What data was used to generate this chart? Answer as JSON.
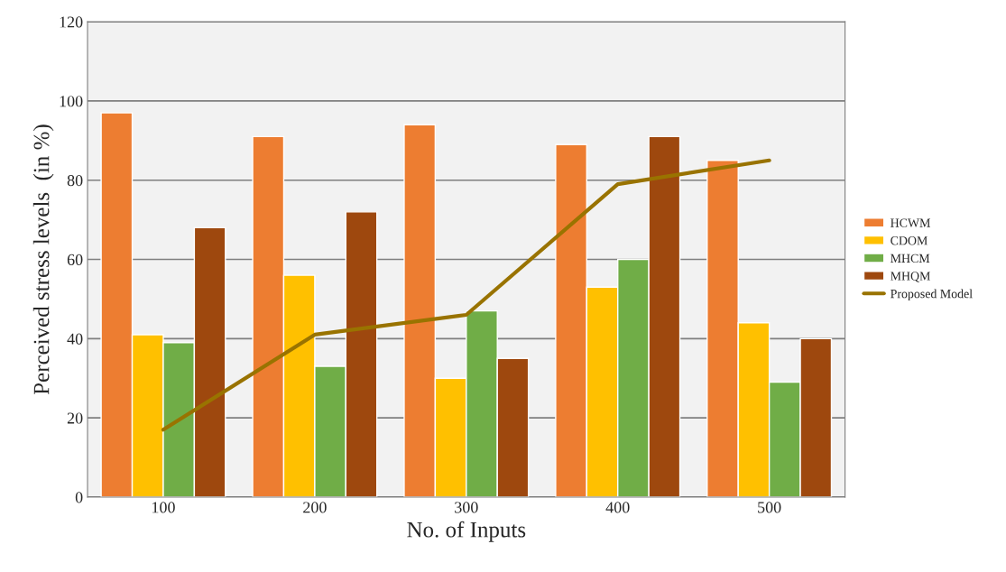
{
  "chart_data": {
    "type": "bar",
    "xlabel": "No. of Inputs",
    "ylabel": "Perceived stress levels  (in %)",
    "categories": [
      "100",
      "200",
      "300",
      "400",
      "500"
    ],
    "series": [
      {
        "name": "HCWM",
        "color": "#ed7d31",
        "values": [
          97,
          91,
          94,
          89,
          85
        ]
      },
      {
        "name": "CDOM",
        "color": "#ffc000",
        "values": [
          41,
          56,
          30,
          53,
          44
        ]
      },
      {
        "name": "MHCM",
        "color": "#70ad47",
        "values": [
          39,
          33,
          47,
          60,
          29
        ]
      },
      {
        "name": "MHQM",
        "color": "#9e480e",
        "values": [
          68,
          72,
          35,
          91,
          40
        ]
      },
      {
        "name": "Proposed Model",
        "type": "line",
        "color": "#997300",
        "values": [
          17,
          41,
          46,
          79,
          85
        ]
      }
    ],
    "ylim": [
      0,
      120
    ],
    "yticks": [
      0,
      20,
      40,
      60,
      80,
      100,
      120
    ],
    "grid": "y",
    "legend": "right"
  }
}
